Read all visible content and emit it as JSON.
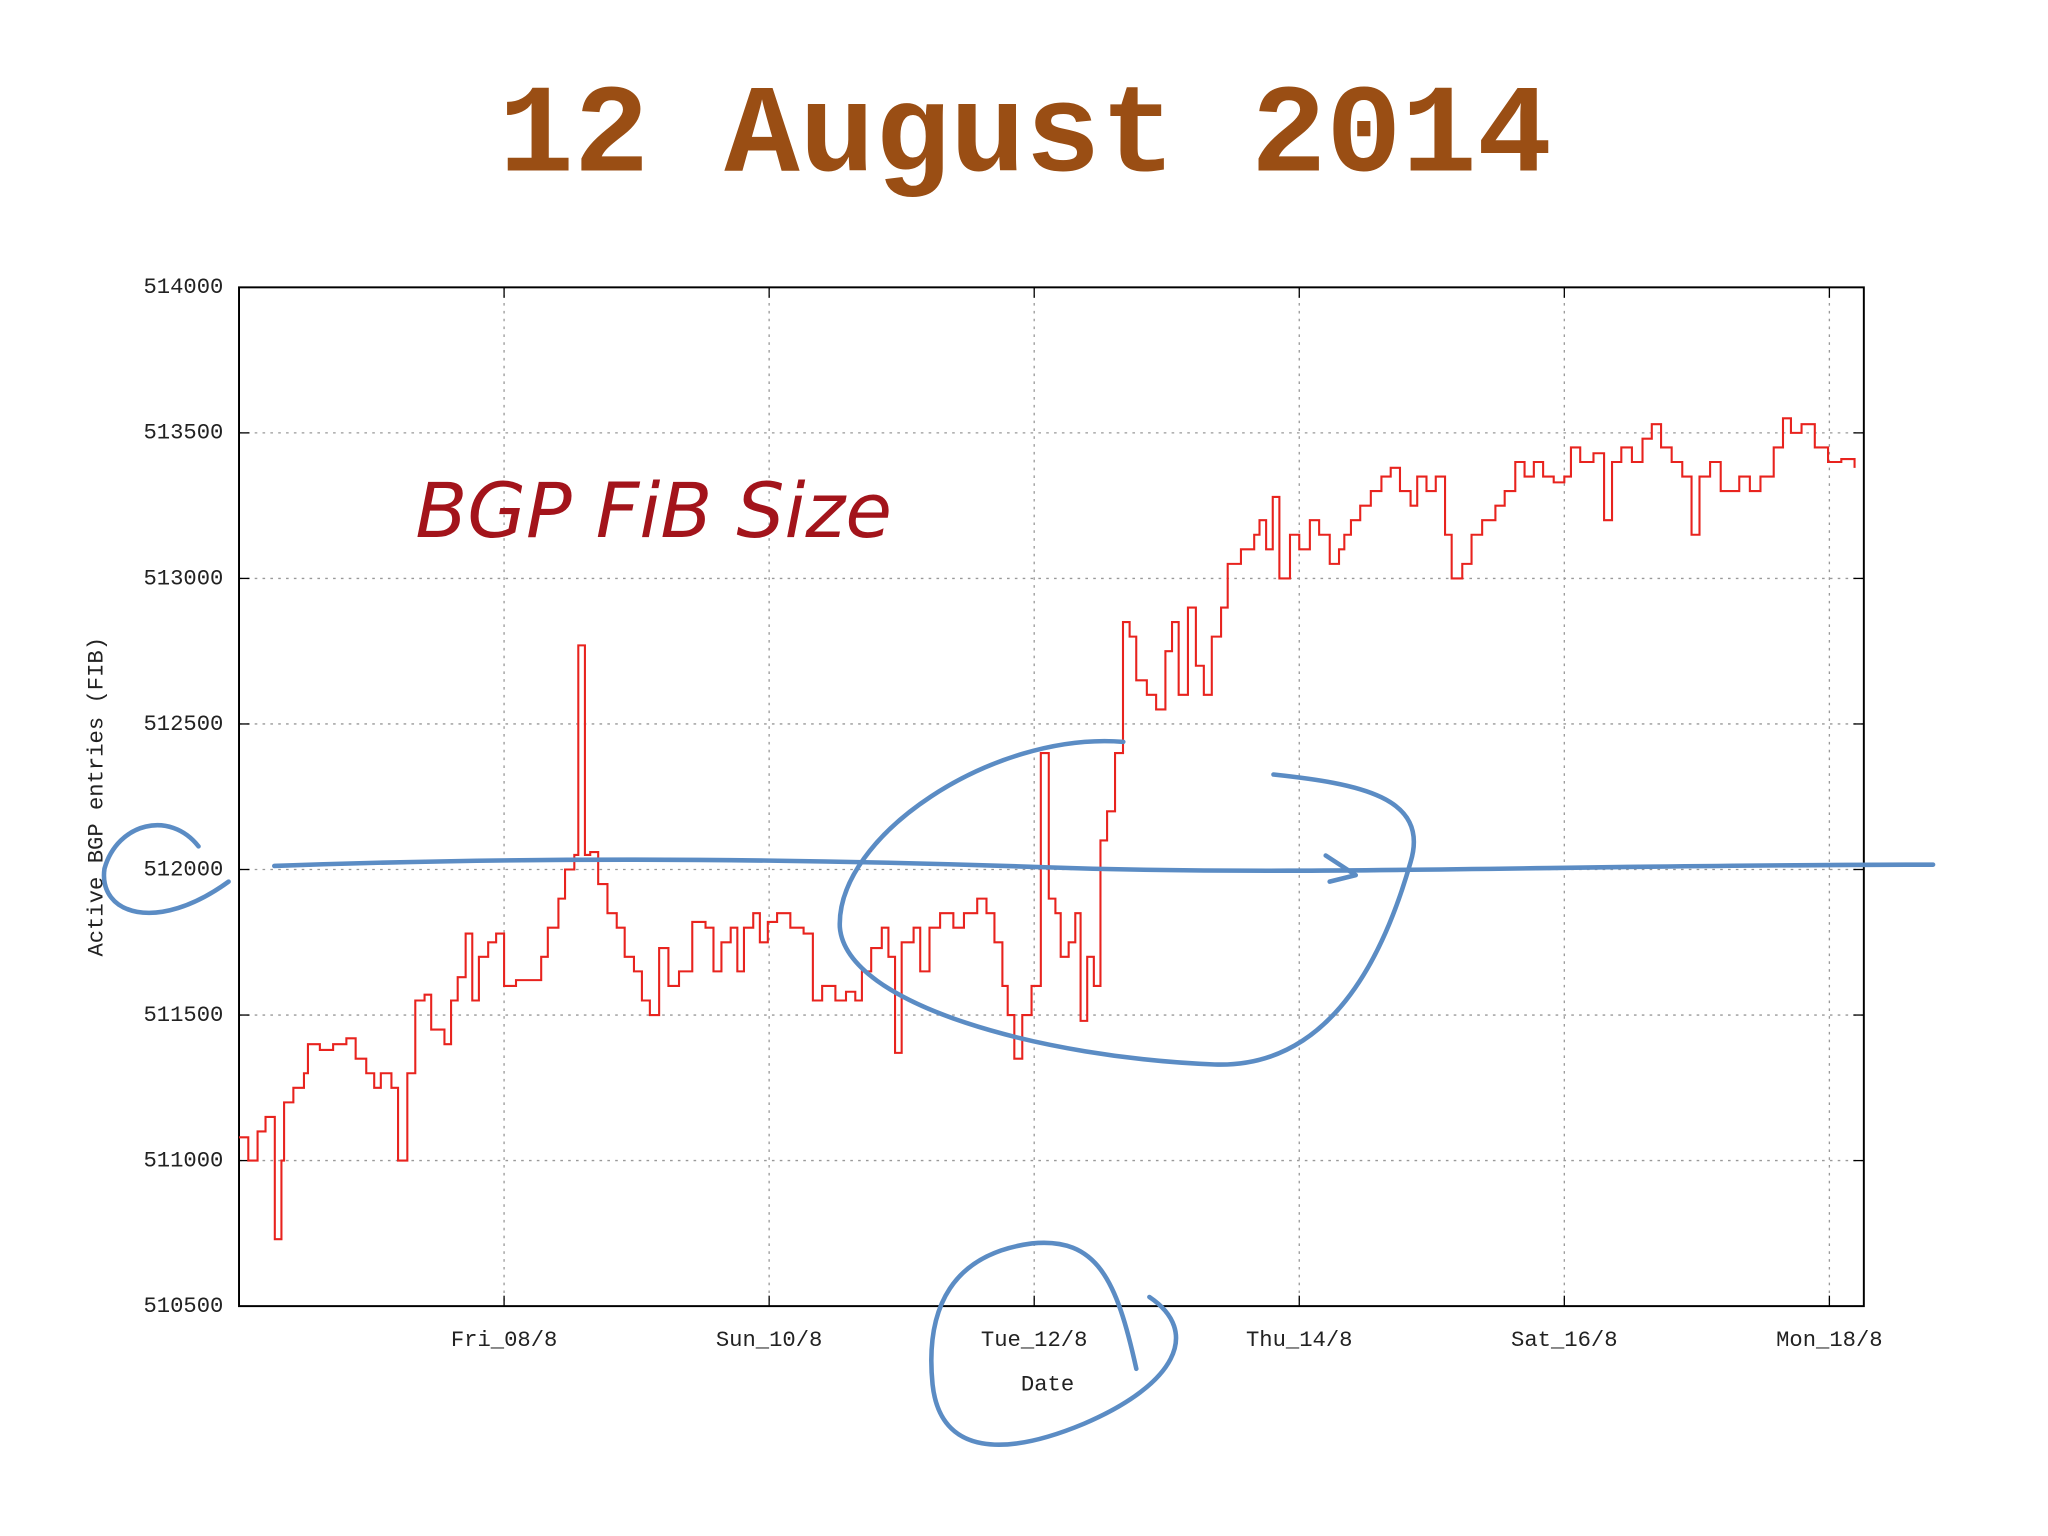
{
  "chart_data": {
    "type": "line",
    "title": "12 August 2014",
    "annotation": "BGP FiB Size",
    "xlabel": "Date",
    "ylabel": "Active BGP entries (FIB)",
    "xlim": [
      6.0,
      18.26
    ],
    "xticks": [
      {
        "value": 8,
        "label": "Fri_08/8"
      },
      {
        "value": 10,
        "label": "Sun_10/8"
      },
      {
        "value": 12,
        "label": "Tue_12/8"
      },
      {
        "value": 14,
        "label": "Thu_14/8"
      },
      {
        "value": 16,
        "label": "Sat_16/8"
      },
      {
        "value": 18,
        "label": "Mon_18/8"
      }
    ],
    "ylim": [
      510500,
      514000
    ],
    "yticks": [
      510500,
      511000,
      511500,
      512000,
      512500,
      513000,
      513500,
      514000
    ],
    "grid": true,
    "series": [
      {
        "name": "FIB",
        "color": "#e8231e",
        "x": [
          6.0,
          6.07,
          6.14,
          6.2,
          6.27,
          6.32,
          6.34,
          6.41,
          6.49,
          6.52,
          6.61,
          6.71,
          6.81,
          6.88,
          6.96,
          7.02,
          7.07,
          7.15,
          7.2,
          7.27,
          7.33,
          7.4,
          7.45,
          7.55,
          7.6,
          7.65,
          7.71,
          7.76,
          7.81,
          7.88,
          7.94,
          8.0,
          8.09,
          8.19,
          8.28,
          8.33,
          8.41,
          8.46,
          8.53,
          8.56,
          8.61,
          8.65,
          8.71,
          8.78,
          8.85,
          8.91,
          8.98,
          9.04,
          9.1,
          9.17,
          9.24,
          9.32,
          9.42,
          9.52,
          9.58,
          9.64,
          9.71,
          9.76,
          9.81,
          9.88,
          9.93,
          9.99,
          10.06,
          10.16,
          10.26,
          10.33,
          10.4,
          10.5,
          10.58,
          10.65,
          10.7,
          10.77,
          10.85,
          10.9,
          10.95,
          11.0,
          11.09,
          11.14,
          11.21,
          11.29,
          11.39,
          11.47,
          11.57,
          11.64,
          11.7,
          11.76,
          11.8,
          11.85,
          11.91,
          11.98,
          12.05,
          12.11,
          12.16,
          12.2,
          12.26,
          12.31,
          12.35,
          12.4,
          12.45,
          12.5,
          12.55,
          12.61,
          12.67,
          12.72,
          12.77,
          12.85,
          12.92,
          12.99,
          13.04,
          13.09,
          13.16,
          13.22,
          13.28,
          13.34,
          13.41,
          13.46,
          13.56,
          13.66,
          13.7,
          13.75,
          13.8,
          13.85,
          13.93,
          14.0,
          14.08,
          14.15,
          14.23,
          14.3,
          14.34,
          14.39,
          14.46,
          14.54,
          14.62,
          14.69,
          14.76,
          14.84,
          14.89,
          14.96,
          15.03,
          15.1,
          15.15,
          15.23,
          15.3,
          15.38,
          15.48,
          15.55,
          15.63,
          15.7,
          15.77,
          15.84,
          15.92,
          16.0,
          16.05,
          16.12,
          16.22,
          16.3,
          16.36,
          16.43,
          16.51,
          16.59,
          16.66,
          16.73,
          16.81,
          16.89,
          16.96,
          17.02,
          17.1,
          17.18,
          17.25,
          17.32,
          17.4,
          17.48,
          17.58,
          17.65,
          17.71,
          17.79,
          17.89,
          17.99,
          18.09,
          18.19
        ],
        "values": [
          511080,
          511000,
          511100,
          511150,
          510730,
          511000,
          511200,
          511250,
          511300,
          511400,
          511380,
          511400,
          511420,
          511350,
          511300,
          511250,
          511300,
          511250,
          511000,
          511300,
          511550,
          511570,
          511450,
          511400,
          511550,
          511630,
          511780,
          511550,
          511700,
          511750,
          511780,
          511600,
          511620,
          511620,
          511700,
          511800,
          511900,
          512000,
          512050,
          512770,
          512050,
          512060,
          511950,
          511850,
          511800,
          511700,
          511650,
          511550,
          511500,
          511730,
          511600,
          511650,
          511820,
          511800,
          511650,
          511750,
          511800,
          511650,
          511800,
          511850,
          511750,
          511820,
          511850,
          511800,
          511780,
          511550,
          511600,
          511550,
          511580,
          511550,
          511650,
          511730,
          511800,
          511700,
          511370,
          511750,
          511800,
          511650,
          511800,
          511850,
          511800,
          511850,
          511900,
          511850,
          511750,
          511600,
          511500,
          511350,
          511500,
          511600,
          512400,
          511900,
          511850,
          511700,
          511750,
          511850,
          511480,
          511700,
          511600,
          512100,
          512200,
          512400,
          512850,
          512800,
          512650,
          512600,
          512550,
          512750,
          512850,
          512600,
          512900,
          512700,
          512600,
          512800,
          512900,
          513050,
          513100,
          513150,
          513200,
          513100,
          513280,
          513000,
          513150,
          513100,
          513200,
          513150,
          513050,
          513100,
          513150,
          513200,
          513250,
          513300,
          513350,
          513380,
          513300,
          513250,
          513350,
          513300,
          513350,
          513150,
          513000,
          513050,
          513150,
          513200,
          513250,
          513300,
          513400,
          513350,
          513400,
          513350,
          513330,
          513350,
          513450,
          513400,
          513430,
          513200,
          513400,
          513450,
          513400,
          513480,
          513530,
          513450,
          513400,
          513350,
          513150,
          513350,
          513400,
          513300,
          513300,
          513350,
          513300,
          513350,
          513450,
          513550,
          513500,
          513530,
          513450,
          513400,
          513410,
          513380
        ]
      }
    ]
  }
}
